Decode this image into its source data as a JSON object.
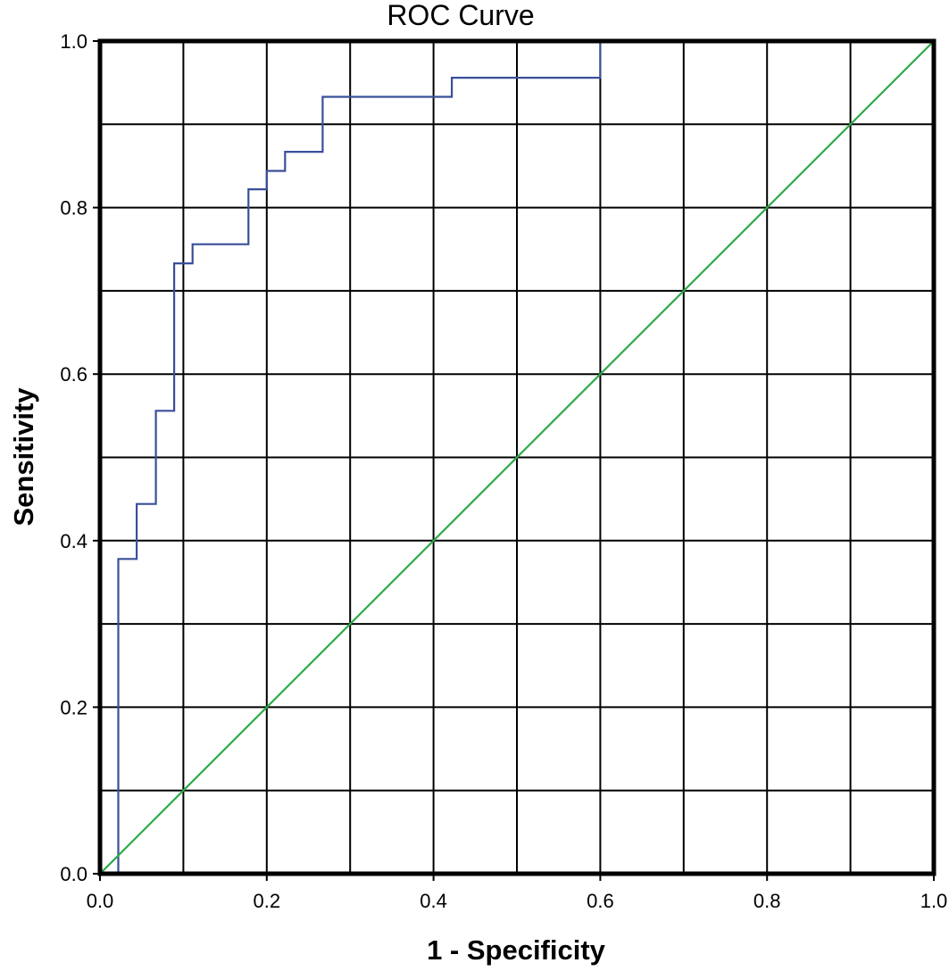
{
  "chart_data": {
    "type": "line",
    "title": "ROC Curve",
    "xlabel": "1 - Specificity",
    "ylabel": "Sensitivity",
    "xlim": [
      0.0,
      1.0
    ],
    "ylim": [
      0.0,
      1.0
    ],
    "x_tick_labels": [
      "0.0",
      "0.2",
      "0.4",
      "0.6",
      "0.8",
      "1.0"
    ],
    "y_tick_labels": [
      "0.0",
      "0.2",
      "0.4",
      "0.6",
      "0.8",
      "1.0"
    ],
    "grid": true,
    "gridline_interval": 0.1,
    "legend": "none",
    "series": [
      {
        "color": "#3a4f9a",
        "step": true,
        "x": [
          0.0,
          0.022,
          0.022,
          0.044,
          0.044,
          0.067,
          0.067,
          0.089,
          0.089,
          0.111,
          0.111,
          0.178,
          0.178,
          0.2,
          0.2,
          0.222,
          0.222,
          0.267,
          0.267,
          0.422,
          0.422,
          0.6,
          0.6,
          1.0
        ],
        "y": [
          0.0,
          0.0,
          0.378,
          0.378,
          0.444,
          0.444,
          0.556,
          0.556,
          0.733,
          0.733,
          0.756,
          0.756,
          0.822,
          0.822,
          0.844,
          0.844,
          0.867,
          0.867,
          0.933,
          0.933,
          0.956,
          0.956,
          1.0,
          1.0
        ]
      },
      {
        "color": "#2eaa4a",
        "step": false,
        "x": [
          0.0,
          1.0
        ],
        "y": [
          0.0,
          1.0
        ]
      }
    ]
  }
}
